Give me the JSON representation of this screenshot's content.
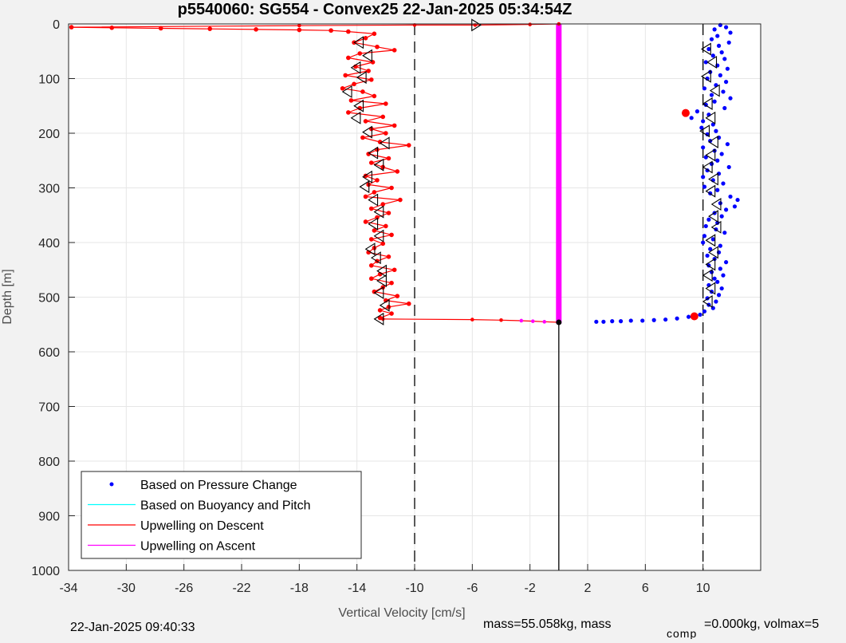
{
  "chart_data": {
    "type": "scatter",
    "title": "p5540060: SG554 - Convex25 22-Jan-2025 05:34:54Z",
    "xlabel": "Vertical Velocity [cm/s]",
    "ylabel": "Depth [m]",
    "xlim": [
      -34,
      14
    ],
    "ylim": [
      0,
      1000
    ],
    "y_reversed": true,
    "grid": true,
    "x_ticks": [
      -34,
      -30,
      -26,
      -22,
      -18,
      -14,
      -10,
      -6,
      -2,
      2,
      6,
      10
    ],
    "y_ticks": [
      0,
      100,
      200,
      300,
      400,
      500,
      600,
      700,
      800,
      900,
      1000
    ],
    "reference_lines": [
      {
        "x": -10,
        "y_range": [
          0,
          1000
        ],
        "style": "dashed"
      },
      {
        "x": 10,
        "y_range": [
          0,
          1000
        ],
        "style": "dashed"
      },
      {
        "x": 0,
        "y_range": [
          548,
          1000
        ],
        "style": "solid"
      }
    ],
    "legend": {
      "placement": "bottom-left",
      "entries": [
        {
          "label": "Based on Pressure Change",
          "color": "#0000ff",
          "marker": "dot"
        },
        {
          "label": "Based on Buoyancy and Pitch",
          "color": "#00ffff",
          "marker": "line"
        },
        {
          "label": "Upwelling on Descent",
          "color": "#ff0000",
          "marker": "line"
        },
        {
          "label": "Upwelling on Ascent",
          "color": "#ff00ff",
          "marker": "line"
        }
      ]
    },
    "series": [
      {
        "name": "Based on Pressure Change",
        "color": "#0000ff",
        "style": "dots",
        "points": [
          [
            11.2,
            2
          ],
          [
            11.6,
            6
          ],
          [
            10.8,
            10
          ],
          [
            11.9,
            16
          ],
          [
            11.0,
            22
          ],
          [
            10.6,
            28
          ],
          [
            11.8,
            34
          ],
          [
            11.1,
            40
          ],
          [
            10.4,
            46
          ],
          [
            11.3,
            52
          ],
          [
            10.7,
            58
          ],
          [
            11.5,
            64
          ],
          [
            10.2,
            70
          ],
          [
            11.0,
            76
          ],
          [
            11.7,
            82
          ],
          [
            10.5,
            88
          ],
          [
            11.2,
            94
          ],
          [
            10.3,
            100
          ],
          [
            11.6,
            106
          ],
          [
            10.9,
            112
          ],
          [
            10.1,
            118
          ],
          [
            11.4,
            124
          ],
          [
            10.6,
            130
          ],
          [
            11.9,
            136
          ],
          [
            10.8,
            142
          ],
          [
            10.2,
            148
          ],
          [
            11.5,
            154
          ],
          [
            9.6,
            160
          ],
          [
            10.4,
            166
          ],
          [
            9.2,
            172
          ],
          [
            10.0,
            178
          ],
          [
            10.7,
            184
          ],
          [
            9.9,
            190
          ],
          [
            10.9,
            196
          ],
          [
            10.3,
            202
          ],
          [
            11.1,
            208
          ],
          [
            10.5,
            214
          ],
          [
            11.7,
            220
          ],
          [
            10.0,
            226
          ],
          [
            10.8,
            232
          ],
          [
            11.3,
            238
          ],
          [
            10.2,
            244
          ],
          [
            11.0,
            250
          ],
          [
            10.6,
            256
          ],
          [
            11.8,
            262
          ],
          [
            10.3,
            268
          ],
          [
            11.1,
            274
          ],
          [
            10.0,
            280
          ],
          [
            10.7,
            286
          ],
          [
            11.4,
            292
          ],
          [
            10.1,
            298
          ],
          [
            11.0,
            304
          ],
          [
            10.5,
            310
          ],
          [
            11.9,
            316
          ],
          [
            12.4,
            322
          ],
          [
            11.2,
            328
          ],
          [
            12.2,
            334
          ],
          [
            11.6,
            340
          ],
          [
            10.8,
            346
          ],
          [
            11.3,
            352
          ],
          [
            10.4,
            358
          ],
          [
            11.0,
            364
          ],
          [
            10.2,
            370
          ],
          [
            10.9,
            376
          ],
          [
            11.5,
            382
          ],
          [
            10.1,
            388
          ],
          [
            10.7,
            394
          ],
          [
            10.0,
            400
          ],
          [
            11.2,
            406
          ],
          [
            10.5,
            412
          ],
          [
            11.1,
            418
          ],
          [
            10.3,
            424
          ],
          [
            10.8,
            430
          ],
          [
            11.6,
            436
          ],
          [
            10.4,
            442
          ],
          [
            11.2,
            448
          ],
          [
            10.6,
            454
          ],
          [
            11.4,
            460
          ],
          [
            10.8,
            466
          ],
          [
            11.0,
            472
          ],
          [
            10.4,
            478
          ],
          [
            11.3,
            484
          ],
          [
            10.6,
            490
          ],
          [
            11.1,
            496
          ],
          [
            10.3,
            502
          ],
          [
            10.9,
            508
          ],
          [
            10.4,
            514
          ],
          [
            10.7,
            520
          ],
          [
            10.1,
            526
          ],
          [
            9.8,
            532
          ],
          [
            9.0,
            536
          ],
          [
            8.2,
            539
          ],
          [
            7.4,
            541
          ],
          [
            6.6,
            542
          ],
          [
            5.8,
            543
          ],
          [
            5.0,
            543
          ],
          [
            4.3,
            544
          ],
          [
            3.7,
            544
          ],
          [
            3.1,
            545
          ],
          [
            2.6,
            545
          ]
        ]
      },
      {
        "name": "Upwelling on Descent",
        "color": "#ff0000",
        "style": "line-dots",
        "points": [
          [
            -33.8,
            6
          ],
          [
            -31.0,
            7
          ],
          [
            -27.6,
            8
          ],
          [
            -24.2,
            9
          ],
          [
            -21.0,
            10
          ],
          [
            -18.0,
            11
          ],
          [
            -15.8,
            12
          ],
          [
            -14.6,
            14
          ],
          [
            -12.8,
            18
          ],
          [
            -13.4,
            26
          ],
          [
            -14.2,
            34
          ],
          [
            -12.6,
            42
          ],
          [
            -11.4,
            48
          ],
          [
            -13.8,
            54
          ],
          [
            -14.6,
            62
          ],
          [
            -12.9,
            70
          ],
          [
            -14.1,
            78
          ],
          [
            -13.2,
            86
          ],
          [
            -14.8,
            94
          ],
          [
            -13.0,
            102
          ],
          [
            -14.2,
            110
          ],
          [
            -15.0,
            118
          ],
          [
            -13.6,
            124
          ],
          [
            -12.8,
            132
          ],
          [
            -14.4,
            140
          ],
          [
            -12.0,
            146
          ],
          [
            -13.8,
            154
          ],
          [
            -14.6,
            162
          ],
          [
            -12.2,
            170
          ],
          [
            -13.4,
            178
          ],
          [
            -11.4,
            186
          ],
          [
            -13.0,
            192
          ],
          [
            -12.0,
            200
          ],
          [
            -13.6,
            208
          ],
          [
            -12.4,
            216
          ],
          [
            -10.4,
            222
          ],
          [
            -12.6,
            230
          ],
          [
            -13.2,
            238
          ],
          [
            -11.8,
            246
          ],
          [
            -13.0,
            254
          ],
          [
            -12.2,
            262
          ],
          [
            -11.2,
            270
          ],
          [
            -13.4,
            278
          ],
          [
            -12.6,
            286
          ],
          [
            -13.2,
            294
          ],
          [
            -11.6,
            300
          ],
          [
            -12.8,
            308
          ],
          [
            -13.4,
            316
          ],
          [
            -11.0,
            322
          ],
          [
            -12.2,
            330
          ],
          [
            -13.0,
            338
          ],
          [
            -11.8,
            346
          ],
          [
            -12.6,
            354
          ],
          [
            -13.4,
            362
          ],
          [
            -12.0,
            370
          ],
          [
            -12.8,
            378
          ],
          [
            -11.6,
            386
          ],
          [
            -13.0,
            394
          ],
          [
            -12.2,
            402
          ],
          [
            -12.8,
            410
          ],
          [
            -13.2,
            418
          ],
          [
            -11.8,
            426
          ],
          [
            -12.6,
            434
          ],
          [
            -13.0,
            442
          ],
          [
            -11.4,
            450
          ],
          [
            -12.4,
            458
          ],
          [
            -13.0,
            466
          ],
          [
            -11.6,
            474
          ],
          [
            -12.2,
            482
          ],
          [
            -12.8,
            490
          ],
          [
            -11.2,
            498
          ],
          [
            -12.0,
            506
          ],
          [
            -10.4,
            512
          ],
          [
            -11.8,
            518
          ],
          [
            -12.4,
            524
          ],
          [
            -11.6,
            530
          ],
          [
            -12.4,
            538
          ]
        ]
      },
      {
        "name": "Upwelling on Ascent",
        "color": "#ff00ff",
        "style": "line",
        "points": [
          [
            0,
            0
          ],
          [
            0,
            548
          ]
        ]
      }
    ],
    "triangle_markers_descent": [
      [
        -13.8,
        34
      ],
      [
        -13.2,
        58
      ],
      [
        -14.0,
        80
      ],
      [
        -13.6,
        98
      ],
      [
        -14.6,
        124
      ],
      [
        -13.8,
        150
      ],
      [
        -14.0,
        172
      ],
      [
        -13.2,
        198
      ],
      [
        -12.0,
        218
      ],
      [
        -12.8,
        236
      ],
      [
        -12.4,
        258
      ],
      [
        -13.2,
        280
      ],
      [
        -13.4,
        298
      ],
      [
        -12.8,
        322
      ],
      [
        -12.4,
        344
      ],
      [
        -12.8,
        366
      ],
      [
        -12.4,
        388
      ],
      [
        -13.0,
        412
      ],
      [
        -12.6,
        428
      ],
      [
        -12.2,
        452
      ],
      [
        -12.2,
        470
      ],
      [
        -12.4,
        492
      ],
      [
        -12.0,
        515
      ],
      [
        -12.4,
        540
      ]
    ],
    "triangle_markers_pressure": [
      [
        10.3,
        46
      ],
      [
        10.7,
        70
      ],
      [
        10.3,
        96
      ],
      [
        10.9,
        122
      ],
      [
        10.4,
        146
      ],
      [
        10.6,
        172
      ],
      [
        10.2,
        196
      ],
      [
        10.8,
        216
      ],
      [
        10.6,
        240
      ],
      [
        10.4,
        262
      ],
      [
        10.8,
        284
      ],
      [
        10.6,
        306
      ],
      [
        11.0,
        330
      ],
      [
        10.8,
        352
      ],
      [
        11.0,
        372
      ],
      [
        10.6,
        396
      ],
      [
        10.8,
        418
      ],
      [
        10.6,
        440
      ],
      [
        10.4,
        460
      ],
      [
        10.6,
        484
      ],
      [
        10.4,
        508
      ]
    ],
    "surface_segment": [
      [
        -33.8,
        6
      ],
      [
        -18.0,
        3
      ],
      [
        -10,
        2
      ],
      [
        -5.8,
        2
      ],
      [
        -2.0,
        1
      ],
      [
        0,
        0
      ]
    ],
    "bottom_segment": [
      [
        -12.2,
        540
      ],
      [
        -6.0,
        541
      ],
      [
        -4.0,
        542
      ],
      [
        -2.6,
        543
      ],
      [
        -1.8,
        544
      ],
      [
        -1.0,
        545
      ],
      [
        0,
        546
      ]
    ],
    "special_points": [
      {
        "x": 8.8,
        "y": 163,
        "color": "#ff0000"
      },
      {
        "x": 9.4,
        "y": 535,
        "color": "#ff0000"
      },
      {
        "x": 0,
        "y": 546,
        "color": "#000000"
      }
    ]
  },
  "footer": {
    "timestamp": "22-Jan-2025 09:40:33",
    "mass_text": "mass=55.058kg, mass",
    "comp_sub": "comp",
    "comp_text": "=0.000kg, volmax=5"
  },
  "colors": {
    "pressure": "#0000ff",
    "descent": "#ff0000",
    "ascent": "#ff00ff",
    "buoyancy": "#00ffff"
  }
}
